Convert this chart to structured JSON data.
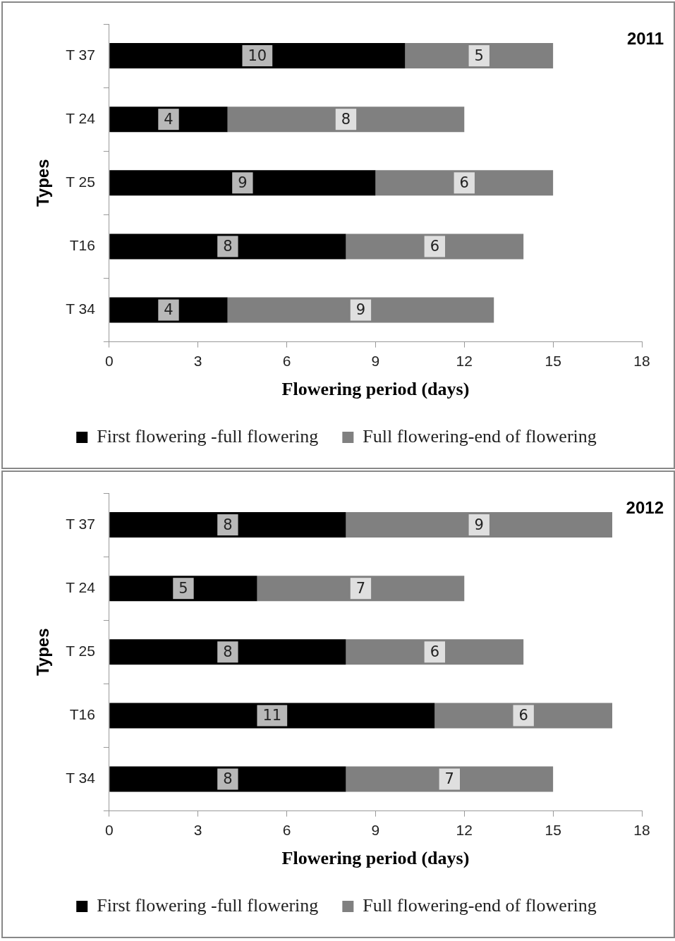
{
  "chart_data": [
    {
      "type": "bar",
      "orientation": "horizontal",
      "stacked": true,
      "title": "2011",
      "xlabel": "Flowering period (days)",
      "ylabel": "Types",
      "categories": [
        "T 37",
        "T 24",
        "T 25",
        "T16",
        "T 34"
      ],
      "series": [
        {
          "name": "First flowering -full flowering",
          "color": "#000000",
          "values": [
            10,
            4,
            9,
            8,
            4
          ]
        },
        {
          "name": "Full flowering-end of flowering",
          "color": "#808080",
          "values": [
            5,
            8,
            6,
            6,
            9
          ]
        }
      ],
      "xlim": [
        0,
        18
      ],
      "xticks": [
        0,
        3,
        6,
        9,
        12,
        15,
        18
      ],
      "data_labels": true,
      "grid": false,
      "legend": "bottom"
    },
    {
      "type": "bar",
      "orientation": "horizontal",
      "stacked": true,
      "title": "2012",
      "xlabel": "Flowering period (days)",
      "ylabel": "Types",
      "categories": [
        "T 37",
        "T 24",
        "T 25",
        "T16",
        "T 34"
      ],
      "series": [
        {
          "name": "First flowering -full flowering",
          "color": "#000000",
          "values": [
            8,
            5,
            8,
            11,
            8
          ]
        },
        {
          "name": "Full flowering-end of flowering",
          "color": "#808080",
          "values": [
            9,
            7,
            6,
            6,
            7
          ]
        }
      ],
      "xlim": [
        0,
        18
      ],
      "xticks": [
        0,
        3,
        6,
        9,
        12,
        15,
        18
      ],
      "data_labels": true,
      "grid": false,
      "legend": "bottom"
    }
  ]
}
